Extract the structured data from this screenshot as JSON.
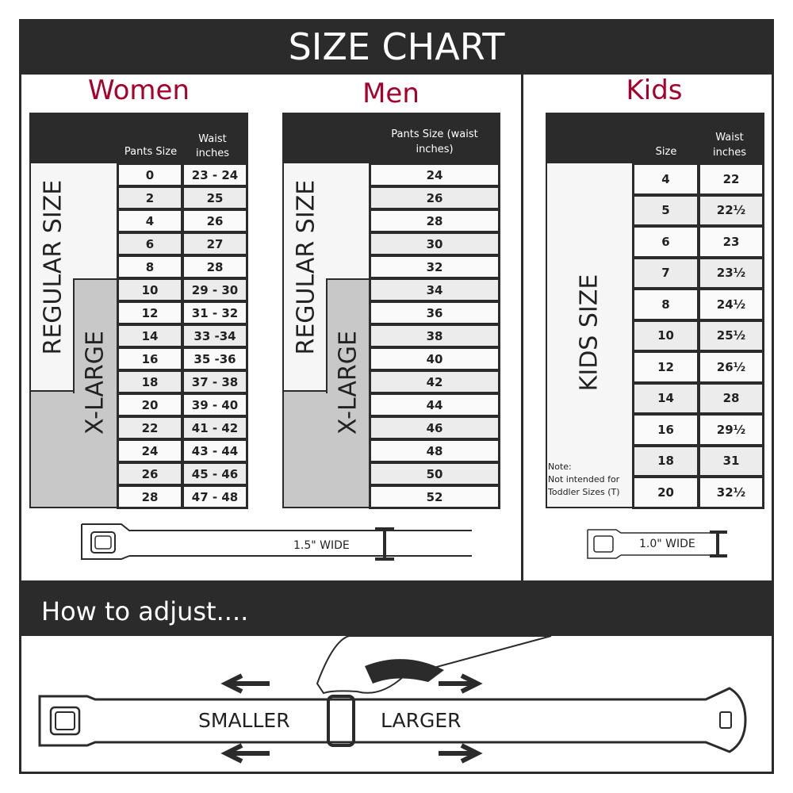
{
  "title": "SIZE CHART",
  "women": {
    "title": "Women",
    "col1": "Pants Size",
    "col2": "Waist inches",
    "regular_label": "REGULAR SIZE",
    "xlarge_label": "X-LARGE",
    "rows": [
      [
        "0",
        "23 - 24"
      ],
      [
        "2",
        "25"
      ],
      [
        "4",
        "26"
      ],
      [
        "6",
        "27"
      ],
      [
        "8",
        "28"
      ],
      [
        "10",
        "29 - 30"
      ],
      [
        "12",
        "31 - 32"
      ],
      [
        "14",
        "33 -34"
      ],
      [
        "16",
        "35 -36"
      ],
      [
        "18",
        "37 - 38"
      ],
      [
        "20",
        "39 - 40"
      ],
      [
        "22",
        "41 - 42"
      ],
      [
        "24",
        "43 - 44"
      ],
      [
        "26",
        "45 - 46"
      ],
      [
        "28",
        "47 - 48"
      ]
    ],
    "belt_width": "1.5\" WIDE"
  },
  "men": {
    "title": "Men",
    "col1": "Pants Size (waist inches)",
    "regular_label": "REGULAR SIZE",
    "xlarge_label": "X-LARGE",
    "rows": [
      "24",
      "26",
      "28",
      "30",
      "32",
      "34",
      "36",
      "38",
      "40",
      "42",
      "44",
      "46",
      "48",
      "50",
      "52"
    ]
  },
  "kids": {
    "title": "Kids",
    "col1": "Size",
    "col2": "Waist inches",
    "label": "KIDS SIZE",
    "note_title": "Note:",
    "note": "Not intended for Toddler Sizes (T)",
    "rows": [
      [
        "4",
        "22"
      ],
      [
        "5",
        "22½"
      ],
      [
        "6",
        "23"
      ],
      [
        "7",
        "23½"
      ],
      [
        "8",
        "24½"
      ],
      [
        "10",
        "25½"
      ],
      [
        "12",
        "26½"
      ],
      [
        "14",
        "28"
      ],
      [
        "16",
        "29½"
      ],
      [
        "18",
        "31"
      ],
      [
        "20",
        "32½"
      ]
    ],
    "belt_width": "1.0\" WIDE"
  },
  "adjust": {
    "title": "How to adjust....",
    "smaller": "SMALLER",
    "larger": "LARGER"
  },
  "colors": {
    "dark": "#2b2b2b",
    "accent": "#a6002c",
    "xlarge_gray": "#c8c8c8"
  }
}
